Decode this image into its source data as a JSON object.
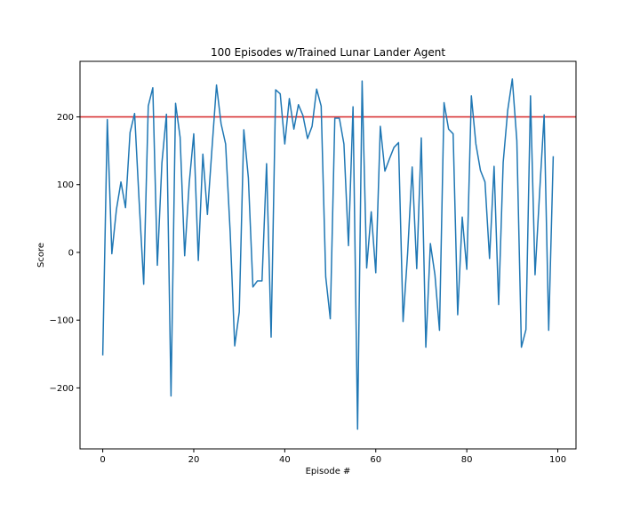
{
  "colors": {
    "series": "#1f77b4",
    "threshold": "#d62728",
    "axes": "#000000",
    "background": "#ffffff"
  },
  "chart_data": {
    "type": "line",
    "title": "100 Episodes w/Trained Lunar Lander Agent",
    "xlabel": "Episode #",
    "ylabel": "Score",
    "xlim": [
      -5,
      104
    ],
    "ylim": [
      -290,
      282
    ],
    "grid": false,
    "xticks": [
      0,
      20,
      40,
      60,
      80,
      100
    ],
    "yticks": [
      -200,
      -100,
      0,
      100,
      200
    ],
    "xtick_labels": [
      "0",
      "20",
      "40",
      "60",
      "80",
      "100"
    ],
    "ytick_labels": [
      "−200",
      "−100",
      "0",
      "100",
      "200"
    ],
    "threshold": {
      "y": 200
    },
    "series": [
      {
        "x": [
          0,
          1,
          2,
          3,
          4,
          5,
          6,
          7,
          8,
          9,
          10,
          11,
          12,
          13,
          14,
          15,
          16,
          17,
          18,
          19,
          20,
          21,
          22,
          23,
          24,
          25,
          26,
          27,
          28,
          29,
          30,
          31,
          32,
          33,
          34,
          35,
          36,
          37,
          38,
          39,
          40,
          41,
          42,
          43,
          44,
          45,
          46,
          47,
          48,
          49,
          50,
          51,
          52,
          53,
          54,
          55,
          56,
          57,
          58,
          59,
          60,
          61,
          62,
          63,
          64,
          65,
          66,
          67,
          68,
          69,
          70,
          71,
          72,
          73,
          74,
          75,
          76,
          77,
          78,
          79,
          80,
          81,
          82,
          83,
          84,
          85,
          86,
          87,
          88,
          89,
          90,
          91,
          92,
          93,
          94,
          95,
          96,
          97,
          98,
          99
        ],
        "values": [
          -152,
          196,
          -2,
          63,
          104,
          66,
          177,
          205,
          75,
          -47,
          216,
          243,
          -19,
          132,
          204,
          -212,
          220,
          170,
          -5,
          102,
          175,
          -12,
          145,
          56,
          153,
          247,
          190,
          160,
          30,
          -138,
          -88,
          181,
          110,
          -51,
          -42,
          -42,
          131,
          -125,
          240,
          234,
          160,
          227,
          182,
          218,
          202,
          168,
          186,
          241,
          216,
          -36,
          -98,
          198,
          198,
          160,
          10,
          215,
          -261,
          253,
          -23,
          60,
          -30,
          186,
          120,
          138,
          155,
          162,
          -102,
          -1,
          126,
          -24,
          169,
          -140,
          13,
          -33,
          -115,
          221,
          182,
          175,
          -92,
          52,
          -25,
          231,
          160,
          121,
          104,
          -9,
          127,
          -77,
          133,
          210,
          256,
          165,
          -140,
          -114,
          231,
          -33,
          88,
          203,
          -115,
          142
        ]
      }
    ]
  }
}
